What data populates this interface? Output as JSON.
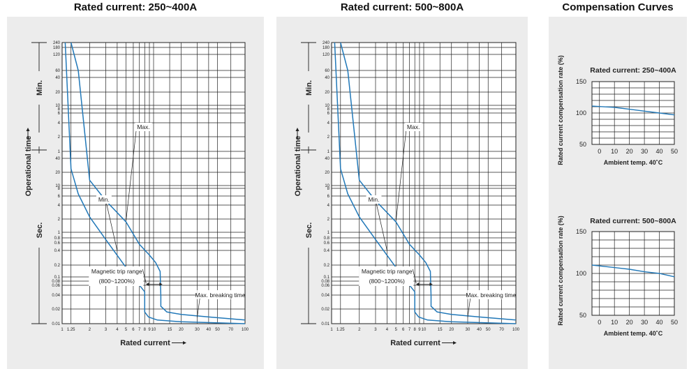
{
  "titles": {
    "chart1": "Rated current: 250~400A",
    "chart2": "Rated current: 500~800A",
    "chart3": "Compensation Curves"
  },
  "chart_data": [
    {
      "type": "line",
      "title": "Rated current: 250~400A",
      "xlabel": "Rated current",
      "ylabel": "Operational time",
      "y_groups": [
        "Min.",
        "Sec."
      ],
      "x_scale": "log",
      "xlim": [
        1,
        100
      ],
      "x_ticks": [
        "1",
        "1.25",
        "2",
        "3",
        "4",
        "5",
        "6",
        "7",
        "8",
        "9",
        "10",
        "15",
        "20",
        "30",
        "40",
        "50",
        "70",
        "100"
      ],
      "y_ticks_min": [
        "240",
        "180",
        "120",
        "60",
        "40",
        "20",
        "10",
        "8",
        "6",
        "4",
        "2",
        "1"
      ],
      "y_ticks_sec": [
        "40",
        "20",
        "10",
        "8",
        "6",
        "4",
        "2",
        "1",
        "0.8",
        "0.6",
        "0.4",
        "0.2",
        "0.1",
        "0.08",
        "0.06",
        "0.04",
        "0.02",
        "0.01"
      ],
      "annotations": [
        "Max.",
        "Min.",
        "Magnetic trip range",
        "(800~1200%)",
        "Max. breaking time"
      ],
      "series": [
        {
          "name": "Max.",
          "points": [
            [
              1.25,
              240
            ],
            [
              1.5,
              60
            ],
            [
              2,
              14
            ],
            [
              3,
              5
            ],
            [
              5,
              1.7
            ],
            [
              7,
              0.55
            ],
            [
              9,
              0.32
            ],
            [
              10.5,
              0.22
            ],
            [
              11.8,
              0.14
            ],
            [
              12,
              0.04
            ],
            [
              12,
              0.024
            ],
            [
              14,
              0.018
            ],
            [
              20,
              0.016
            ],
            [
              40,
              0.014
            ],
            [
              100,
              0.012
            ]
          ]
        },
        {
          "name": "Min.",
          "points": [
            [
              1.08,
              240
            ],
            [
              1.25,
              25
            ],
            [
              1.5,
              7
            ],
            [
              2,
              2.2
            ],
            [
              3,
              0.7
            ],
            [
              5,
              0.17
            ],
            [
              7,
              0.07
            ],
            [
              8,
              0.05
            ],
            [
              8,
              0.018
            ],
            [
              8.8,
              0.014
            ],
            [
              11,
              0.012
            ],
            [
              20,
              0.011
            ],
            [
              100,
              0.01
            ]
          ]
        }
      ]
    },
    {
      "type": "line",
      "title": "Rated current: 500~800A",
      "xlabel": "Rated current",
      "ylabel": "Operational time",
      "y_groups": [
        "Min.",
        "Sec."
      ],
      "x_scale": "log",
      "xlim": [
        1,
        100
      ],
      "x_ticks": [
        "1",
        "1.25",
        "2",
        "3",
        "4",
        "5",
        "6",
        "7",
        "8",
        "9",
        "10",
        "15",
        "20",
        "30",
        "40",
        "50",
        "70",
        "100"
      ],
      "y_ticks_min": [
        "240",
        "180",
        "120",
        "60",
        "40",
        "20",
        "10",
        "8",
        "6",
        "4",
        "2",
        "1"
      ],
      "y_ticks_sec": [
        "40",
        "20",
        "10",
        "8",
        "6",
        "4",
        "2",
        "1",
        "0.8",
        "0.6",
        "0.4",
        "0.2",
        "0.1",
        "0.08",
        "0.06",
        "0.04",
        "0.02",
        "0.01"
      ],
      "annotations": [
        "Max.",
        "Min.",
        "Magnetic trip range",
        "(800~1200%)",
        "Max. breaking time"
      ],
      "series": [
        {
          "name": "Max.",
          "points": [
            [
              1.25,
              240
            ],
            [
              1.5,
              60
            ],
            [
              2,
              14
            ],
            [
              3,
              5
            ],
            [
              5,
              1.7
            ],
            [
              7,
              0.55
            ],
            [
              9,
              0.32
            ],
            [
              10.5,
              0.22
            ],
            [
              11.8,
              0.14
            ],
            [
              12,
              0.04
            ],
            [
              12,
              0.024
            ],
            [
              14,
              0.018
            ],
            [
              20,
              0.016
            ],
            [
              40,
              0.014
            ],
            [
              100,
              0.012
            ]
          ]
        },
        {
          "name": "Min.",
          "points": [
            [
              1.08,
              240
            ],
            [
              1.25,
              25
            ],
            [
              1.5,
              7
            ],
            [
              2,
              2.2
            ],
            [
              3,
              0.7
            ],
            [
              5,
              0.17
            ],
            [
              7,
              0.07
            ],
            [
              8,
              0.05
            ],
            [
              8,
              0.018
            ],
            [
              8.8,
              0.014
            ],
            [
              11,
              0.012
            ],
            [
              20,
              0.011
            ],
            [
              100,
              0.01
            ]
          ]
        }
      ]
    },
    {
      "type": "line",
      "title": "Rated current:  250~400A",
      "xlabel": "Ambient temp. 40˚C",
      "ylabel": "Rated current compensation rate (%)",
      "xlim": [
        -5,
        50
      ],
      "ylim": [
        50,
        150
      ],
      "x_ticks": [
        "0",
        "10",
        "20",
        "30",
        "40",
        "50"
      ],
      "y_ticks": [
        "50",
        "100",
        "150"
      ],
      "series": [
        {
          "points": [
            [
              -5,
              111
            ],
            [
              10,
              109
            ],
            [
              20,
              106
            ],
            [
              30,
              103
            ],
            [
              40,
              100
            ],
            [
              50,
              97
            ]
          ]
        }
      ]
    },
    {
      "type": "line",
      "title": "Rated current: 500~800A",
      "xlabel": "Ambient temp. 40˚C",
      "ylabel": "Rated current compensation rate (%)",
      "xlim": [
        -5,
        50
      ],
      "ylim": [
        50,
        150
      ],
      "x_ticks": [
        "0",
        "10",
        "20",
        "30",
        "40",
        "50"
      ],
      "y_ticks": [
        "50",
        "100",
        "150"
      ],
      "series": [
        {
          "points": [
            [
              -5,
              110
            ],
            [
              10,
              107
            ],
            [
              20,
              105
            ],
            [
              30,
              102
            ],
            [
              40,
              100
            ],
            [
              50,
              96
            ]
          ]
        }
      ]
    }
  ],
  "colors": {
    "curve": "#2178b8",
    "panel": "#ececec",
    "grid": "#222222"
  }
}
